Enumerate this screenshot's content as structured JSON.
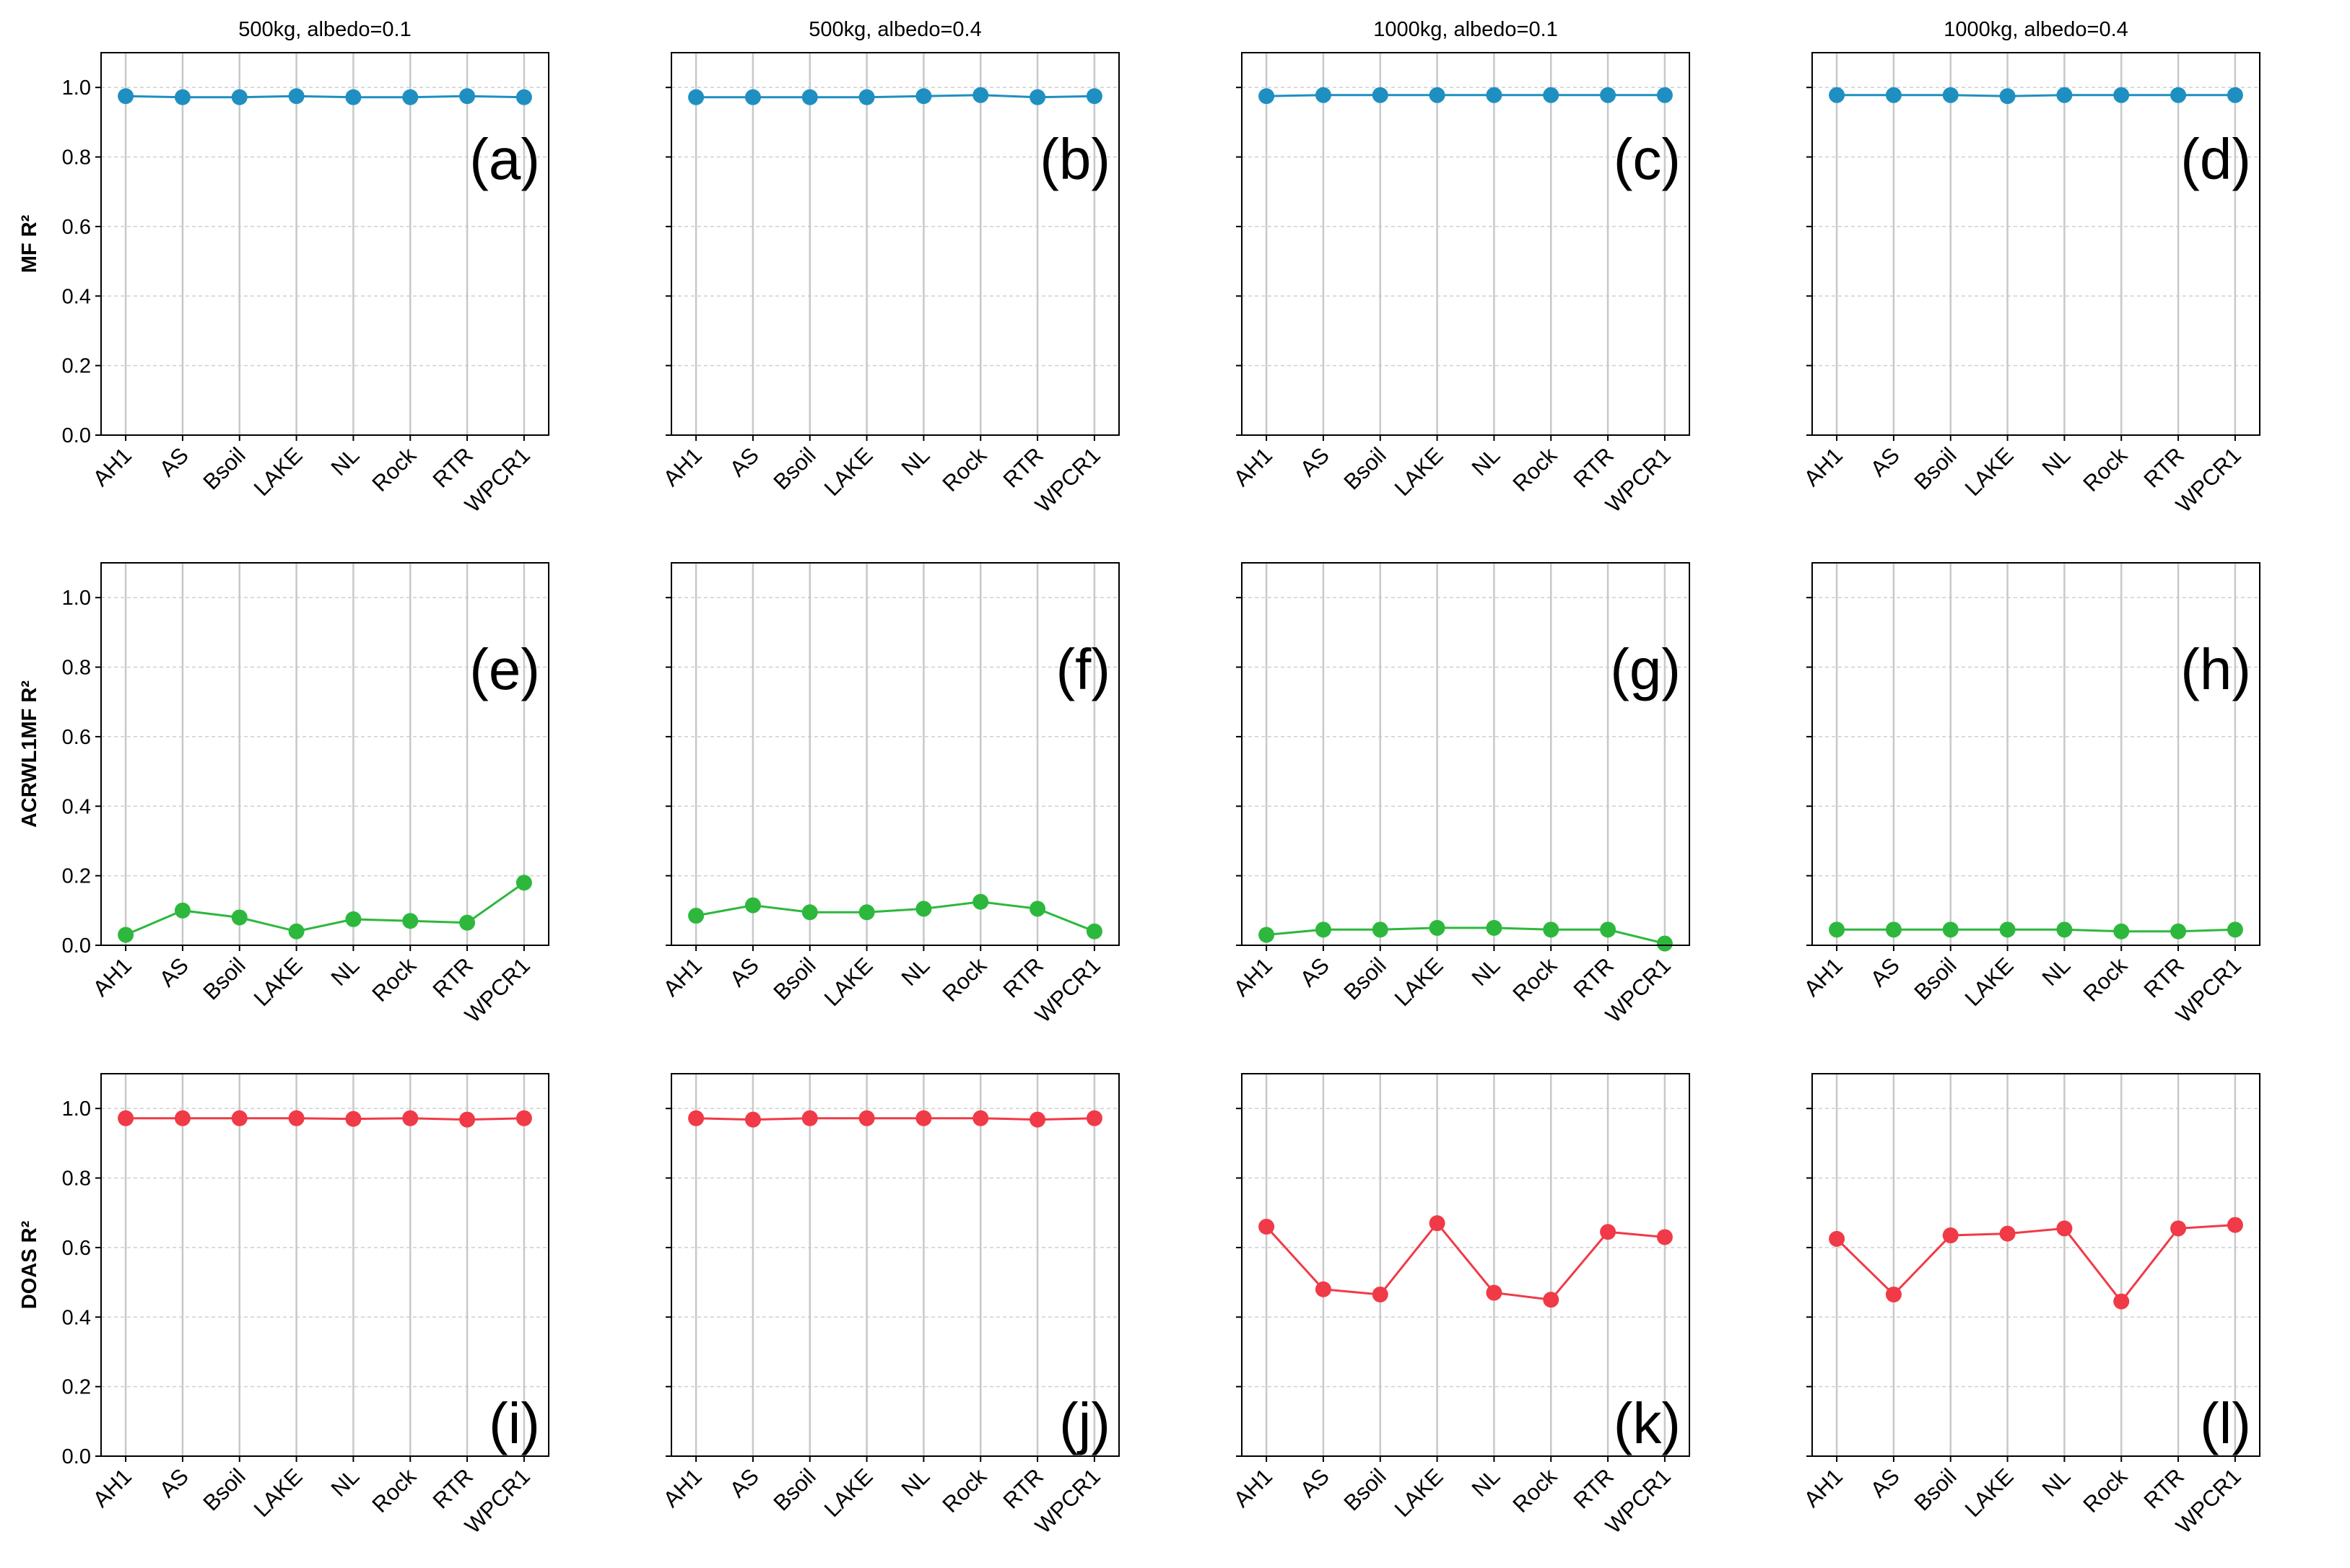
{
  "chart_data": {
    "type": "line",
    "layout": "3 rows x 4 columns grid of subplots",
    "column_titles": [
      "500kg, albedo=0.1",
      "500kg, albedo=0.4",
      "1000kg, albedo=0.1",
      "1000kg, albedo=0.4"
    ],
    "categories": [
      "AH1",
      "AS",
      "Bsoil",
      "LAKE",
      "NL",
      "Rock",
      "RTR",
      "WPCR1"
    ],
    "ylim": [
      0.0,
      1.1
    ],
    "yticks": [
      "0.0",
      "0.2",
      "0.4",
      "0.6",
      "0.8",
      "1.0"
    ],
    "grid": "vertical solid at categories, horizontal dotted at y ticks",
    "rows": [
      {
        "ylabel": "MF R²",
        "color": "#1f8fc1",
        "panels": [
          {
            "letter": "(a)",
            "letter_position": "top-right",
            "values": [
              0.975,
              0.972,
              0.972,
              0.975,
              0.972,
              0.972,
              0.975,
              0.972
            ]
          },
          {
            "letter": "(b)",
            "letter_position": "top-right",
            "values": [
              0.972,
              0.972,
              0.972,
              0.972,
              0.975,
              0.978,
              0.972,
              0.975
            ]
          },
          {
            "letter": "(c)",
            "letter_position": "top-right",
            "values": [
              0.975,
              0.978,
              0.978,
              0.978,
              0.978,
              0.978,
              0.978,
              0.978
            ]
          },
          {
            "letter": "(d)",
            "letter_position": "top-right",
            "values": [
              0.978,
              0.978,
              0.978,
              0.975,
              0.978,
              0.978,
              0.978,
              0.978
            ]
          }
        ]
      },
      {
        "ylabel": "ACRWL1MF R²",
        "color": "#2db83d",
        "panels": [
          {
            "letter": "(e)",
            "letter_position": "top-right",
            "values": [
              0.03,
              0.1,
              0.08,
              0.04,
              0.075,
              0.07,
              0.065,
              0.18
            ]
          },
          {
            "letter": "(f)",
            "letter_position": "top-right",
            "values": [
              0.085,
              0.115,
              0.095,
              0.095,
              0.105,
              0.125,
              0.105,
              0.04
            ]
          },
          {
            "letter": "(g)",
            "letter_position": "top-right",
            "values": [
              0.03,
              0.045,
              0.045,
              0.05,
              0.05,
              0.045,
              0.045,
              0.005
            ]
          },
          {
            "letter": "(h)",
            "letter_position": "top-right",
            "values": [
              0.045,
              0.045,
              0.045,
              0.045,
              0.045,
              0.04,
              0.04,
              0.045
            ]
          }
        ]
      },
      {
        "ylabel": "DOAS R²",
        "color": "#f03a47",
        "panels": [
          {
            "letter": "(i)",
            "letter_position": "bottom-right",
            "values": [
              0.972,
              0.972,
              0.972,
              0.972,
              0.97,
              0.972,
              0.968,
              0.972
            ]
          },
          {
            "letter": "(j)",
            "letter_position": "bottom-right",
            "values": [
              0.972,
              0.968,
              0.972,
              0.972,
              0.972,
              0.972,
              0.968,
              0.972
            ]
          },
          {
            "letter": "(k)",
            "letter_position": "bottom-right",
            "values": [
              0.66,
              0.48,
              0.465,
              0.67,
              0.47,
              0.45,
              0.645,
              0.63
            ]
          },
          {
            "letter": "(l)",
            "letter_position": "bottom-right",
            "values": [
              0.625,
              0.465,
              0.635,
              0.64,
              0.655,
              0.445,
              0.655,
              0.665
            ]
          }
        ]
      }
    ]
  }
}
